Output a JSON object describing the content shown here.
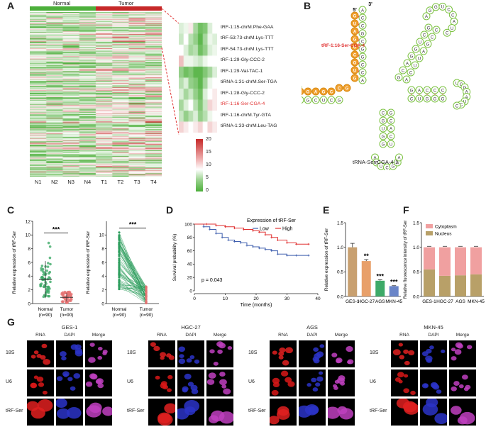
{
  "panels": {
    "A": "A",
    "B": "B",
    "C": "C",
    "D": "D",
    "E": "E",
    "F": "F",
    "G": "G"
  },
  "heatmap": {
    "group_labels": [
      "Normal",
      "Tumor"
    ],
    "sample_labels": [
      "N1",
      "N2",
      "N3",
      "N4",
      "T1",
      "T2",
      "T3",
      "T4"
    ],
    "zoom_rows": [
      "tRF-1:15-chrM.Phe-GAA",
      "tRF-53:73-chrM.Lys-TTT",
      "tRF-54:73-chrM.Lys-TTT",
      "tRF-1:29-Gly-CCC-2",
      "tRF-1:29-Val-TAC-1",
      "tiRNA-1:31-chrM.Ser-TGA",
      "tRF-1:28-Gly-CCC-2",
      "tRF-1:16-Ser-CGA-4",
      "tRF-1:16-chrM.Tyr-GTA",
      "tiRNA-1:33-chrM.Leu-TAG"
    ],
    "highlight_row": "tRF-1:16-Ser-CGA-4",
    "colorbar_ticks": [
      "20",
      "15",
      "10",
      "5",
      "0"
    ],
    "colors": {
      "low": "#4caf3a",
      "mid": "#ffffff",
      "high": "#c62828"
    }
  },
  "structure": {
    "five_prime": "5'",
    "three_prime": "3'",
    "highlight_label": "tRF-1:16-Ser-CGA-4",
    "caption": "tRNA-Ser-CGA-4-1",
    "highlight_seq": [
      "G",
      "U",
      "A",
      "G",
      "U",
      "C",
      "G",
      "U",
      "G",
      "G",
      "C",
      "C",
      "G",
      "A",
      "G",
      "U"
    ]
  },
  "chart_C": {
    "ylabel": "Relative expression of tRF-Ser",
    "left": {
      "groups": [
        "Normal\n(n=90)",
        "Tumor\n(n=90)"
      ],
      "means": [
        3.5,
        0.9
      ],
      "ylim": [
        0,
        12
      ],
      "ticks": [
        "0",
        "2",
        "4",
        "6",
        "8",
        "10",
        "12"
      ],
      "sig": "***"
    },
    "right": {
      "groups": [
        "Normal\n(n=90)",
        "Tumor\n(n=90)"
      ],
      "ylim": [
        0,
        12
      ],
      "ticks": [
        "0",
        "2",
        "4",
        "6",
        "8",
        "10"
      ],
      "sig": "***"
    }
  },
  "chart_data": [
    {
      "type": "line",
      "title": "",
      "xlabel": "Time (months)",
      "ylabel": "Survival probability (%)",
      "legend_title": "Expression of tRF-Ser",
      "xlim": [
        0,
        40
      ],
      "ylim": [
        0,
        100
      ],
      "xticks": [
        "0",
        "10",
        "20",
        "30",
        "40"
      ],
      "yticks": [
        "0",
        "20",
        "40",
        "60",
        "80",
        "100"
      ],
      "annotation": "p = 0.043",
      "series": [
        {
          "name": "Low",
          "color": "#3f5fae",
          "x": [
            0,
            3,
            5,
            7,
            9,
            11,
            13,
            15,
            17,
            19,
            21,
            23,
            25,
            27,
            30,
            33,
            37
          ],
          "y": [
            100,
            96,
            92,
            86,
            80,
            76,
            74,
            72,
            68,
            66,
            64,
            62,
            60,
            55,
            53,
            53,
            53
          ]
        },
        {
          "name": "High",
          "color": "#e03131",
          "x": [
            0,
            4,
            7,
            10,
            13,
            16,
            19,
            21,
            23,
            25,
            27,
            30,
            33,
            37
          ],
          "y": [
            100,
            100,
            98,
            96,
            94,
            92,
            90,
            88,
            84,
            80,
            76,
            72,
            70,
            70
          ]
        }
      ]
    },
    {
      "type": "bar",
      "title": "",
      "ylabel": "Relative expression of tRF-Ser",
      "categories": [
        "GES-1",
        "HGC-27",
        "AGS",
        "MKN-45"
      ],
      "values": [
        1.0,
        0.72,
        0.32,
        0.21
      ],
      "errors": [
        0.08,
        0.03,
        0.02,
        0.01
      ],
      "colors": [
        "#c8a070",
        "#e8a06a",
        "#3daa68",
        "#6a85c8"
      ],
      "sig": [
        "",
        "**",
        "***",
        "***"
      ],
      "ylim": [
        0,
        1.5
      ],
      "yticks": [
        "0.0",
        "0.5",
        "1.0",
        "1.5"
      ]
    },
    {
      "type": "bar",
      "title": "",
      "ylabel": "Relative fluorescence intensity of tRF-Ser",
      "categories": [
        "GES-1",
        "HGC-27",
        "AGS",
        "MKN-45"
      ],
      "series": [
        {
          "name": "Nucleus",
          "color": "#b8a068",
          "values": [
            0.55,
            0.42,
            0.43,
            0.45
          ]
        },
        {
          "name": "Cytoplasm",
          "color": "#f0a0a0",
          "values": [
            0.45,
            0.58,
            0.57,
            0.55
          ]
        }
      ],
      "ylim": [
        0,
        1.5
      ],
      "yticks": [
        "0.0",
        "0.5",
        "1.0",
        "1.5"
      ]
    }
  ],
  "fish": {
    "cell_lines": [
      "GES-1",
      "HGC-27",
      "AGS",
      "MKN-45"
    ],
    "columns": [
      "RNA",
      "DAPI",
      "Merge"
    ],
    "rows": [
      "18S",
      "U6",
      "tRF-Ser"
    ]
  }
}
